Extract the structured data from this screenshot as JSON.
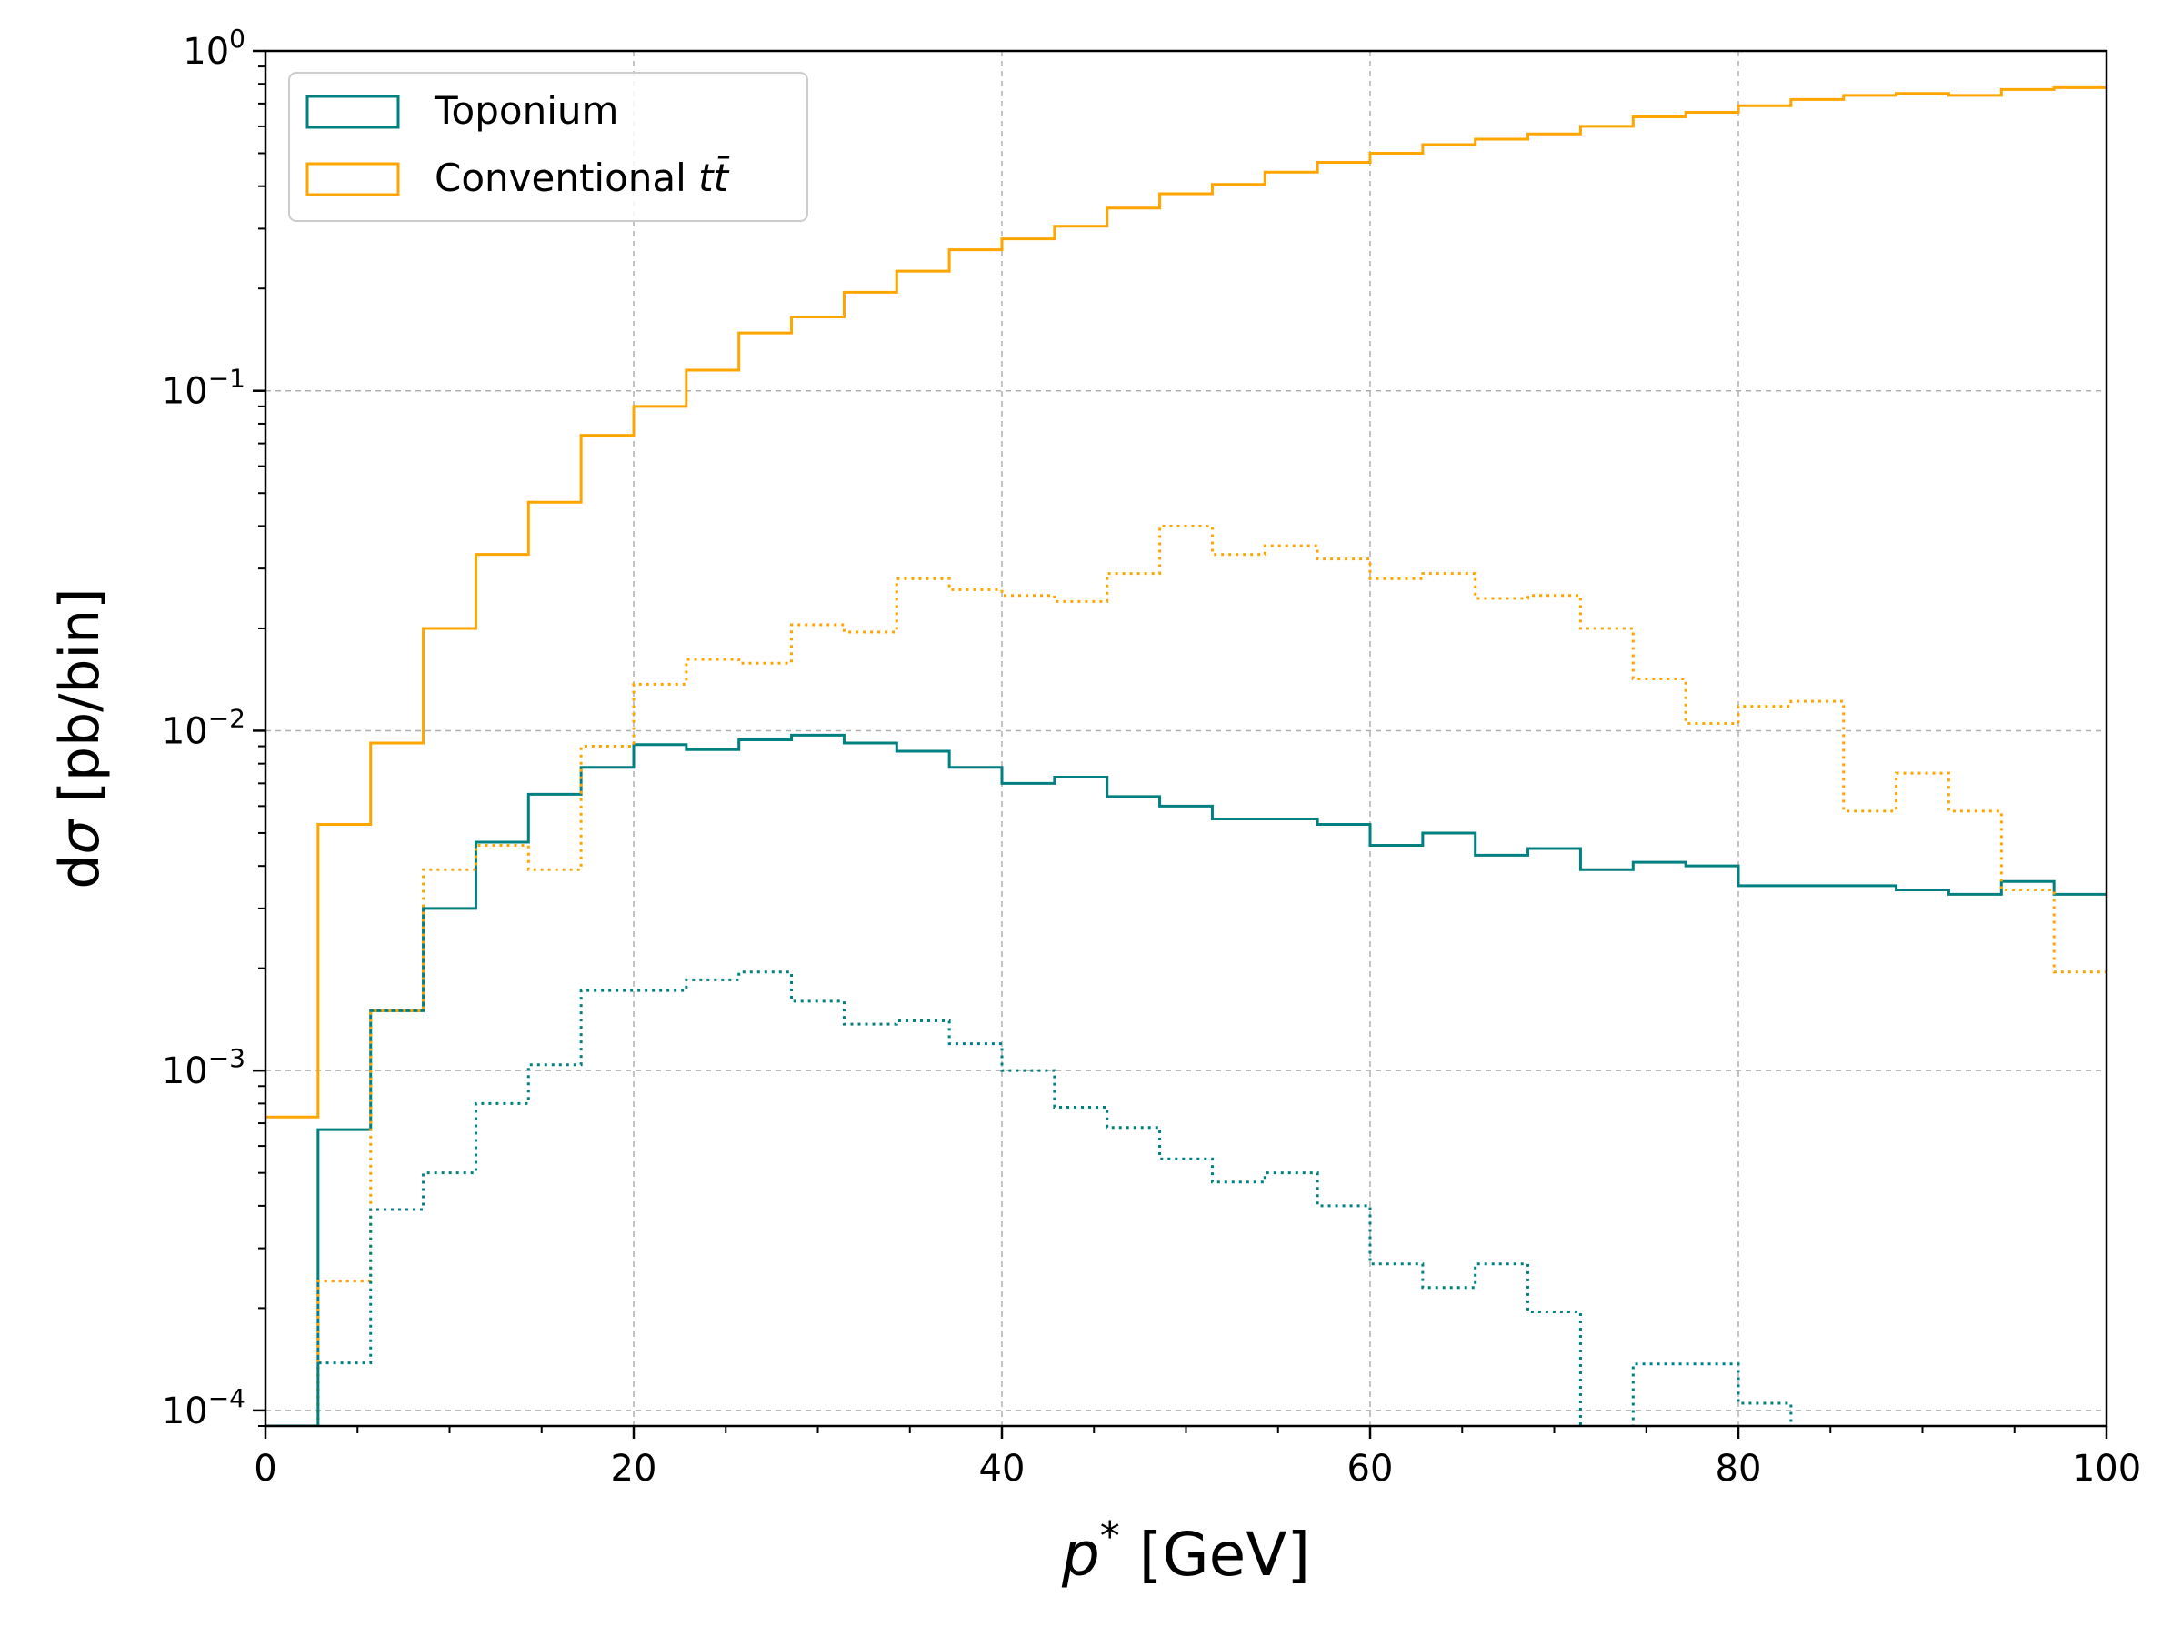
{
  "chart_data": {
    "type": "line",
    "step": true,
    "xlabel": "p* [GeV]",
    "ylabel": "dσ [pb/bin]",
    "yscale": "log",
    "xlim": [
      0,
      100
    ],
    "ylim": [
      9e-05,
      1
    ],
    "xticks": [
      0,
      20,
      40,
      60,
      80,
      100
    ],
    "xtick_labels": [
      "0",
      "20",
      "40",
      "60",
      "80",
      "100"
    ],
    "yticks": [
      0.0001,
      0.001,
      0.01,
      0.1,
      1
    ],
    "ytick_labels": [
      {
        "base": "10",
        "exp": "−4"
      },
      {
        "base": "10",
        "exp": "−3"
      },
      {
        "base": "10",
        "exp": "−2"
      },
      {
        "base": "10",
        "exp": "−1"
      },
      {
        "base": "10",
        "exp": "0"
      }
    ],
    "grid": true,
    "legend_position": "top-left",
    "legend": [
      {
        "label": "Toponium",
        "color": "#008080"
      },
      {
        "label": "Conventional tt̄",
        "color": "#FFA500"
      }
    ],
    "bin_edges": [
      0,
      2.857,
      5.714,
      8.571,
      11.429,
      14.286,
      17.143,
      20,
      22.857,
      25.714,
      28.571,
      31.429,
      34.286,
      37.143,
      40,
      42.857,
      45.714,
      48.571,
      51.429,
      54.286,
      57.143,
      60,
      62.857,
      65.714,
      68.571,
      71.429,
      74.286,
      77.143,
      80,
      82.857,
      85.714,
      88.571,
      91.429,
      94.286,
      97.143,
      100
    ],
    "series": [
      {
        "name": "Conventional tt̄",
        "color": "#FFA500",
        "linestyle": "solid",
        "values": [
          0.00073,
          0.0053,
          0.0092,
          0.02,
          0.033,
          0.047,
          0.074,
          0.09,
          0.115,
          0.148,
          0.165,
          0.195,
          0.225,
          0.26,
          0.28,
          0.305,
          0.345,
          0.38,
          0.405,
          0.44,
          0.47,
          0.5,
          0.53,
          0.55,
          0.57,
          0.6,
          0.64,
          0.66,
          0.69,
          0.72,
          0.74,
          0.75,
          0.74,
          0.77,
          0.78
        ]
      },
      {
        "name": "Toponium",
        "color": "#008080",
        "linestyle": "solid",
        "values": [
          9e-05,
          0.00067,
          0.0015,
          0.003,
          0.0047,
          0.0065,
          0.0078,
          0.0091,
          0.0088,
          0.0094,
          0.0097,
          0.0092,
          0.0087,
          0.0078,
          0.007,
          0.0073,
          0.0064,
          0.006,
          0.0055,
          0.0055,
          0.0053,
          0.0046,
          0.005,
          0.0043,
          0.0045,
          0.0039,
          0.0041,
          0.004,
          0.0035,
          0.0035,
          0.0035,
          0.0034,
          0.0033,
          0.0036,
          0.0033
        ]
      },
      {
        "name": "",
        "color": "#FFA500",
        "linestyle": "dotted",
        "values": [
          null,
          0.00024,
          0.0015,
          0.0039,
          0.0046,
          0.0039,
          0.009,
          0.0137,
          0.0162,
          0.0158,
          0.0205,
          0.0195,
          0.028,
          0.026,
          0.025,
          0.024,
          0.029,
          0.04,
          0.033,
          0.035,
          0.032,
          0.028,
          0.029,
          0.0245,
          0.025,
          0.02,
          0.0142,
          0.0105,
          0.0118,
          0.0122,
          0.0058,
          0.0075,
          0.0058,
          0.0034,
          0.00195
        ]
      },
      {
        "name": "",
        "color": "#008080",
        "linestyle": "dotted",
        "values": [
          null,
          0.000138,
          0.00039,
          0.0005,
          0.0008,
          0.00104,
          0.00172,
          0.00172,
          0.00185,
          0.00195,
          0.0016,
          0.00137,
          0.0014,
          0.0012,
          0.001,
          0.00078,
          0.00068,
          0.00055,
          0.00047,
          0.0005,
          0.0004,
          0.00027,
          0.00023,
          0.00027,
          0.000195,
          6e-05,
          0.000137,
          0.000137,
          0.000105,
          6e-05,
          null,
          null,
          null,
          null,
          null
        ]
      }
    ]
  }
}
